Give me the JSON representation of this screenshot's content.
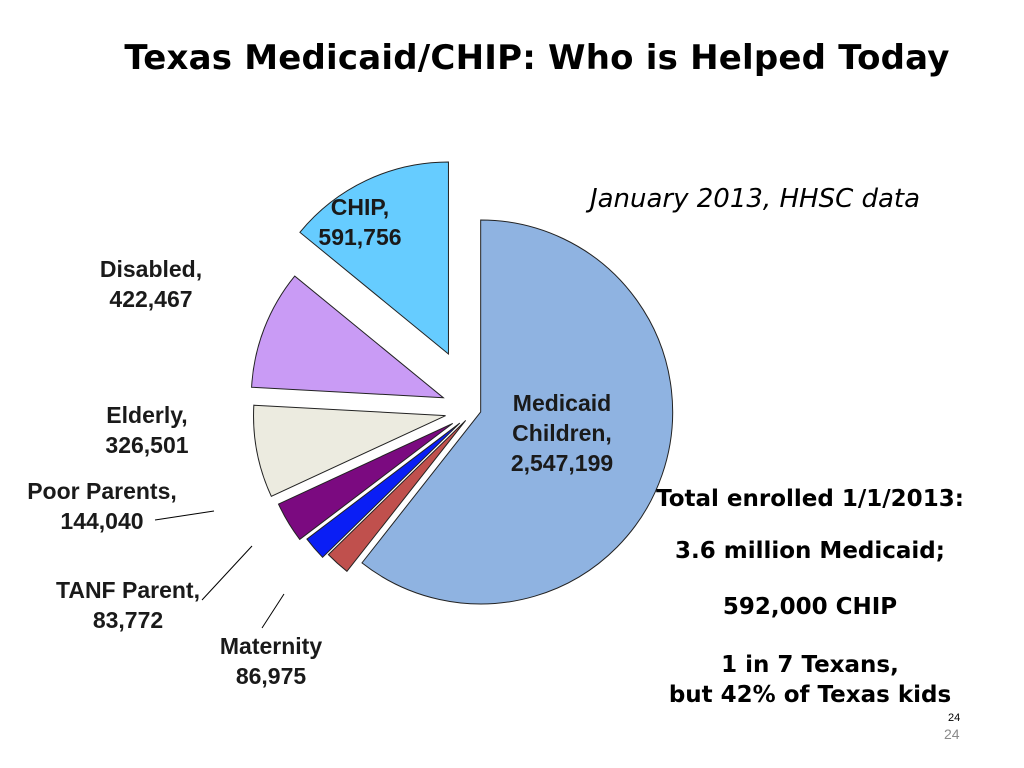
{
  "title": "Texas Medicaid/CHIP: Who is Helped Today",
  "source_note": "January  2013, HHSC data",
  "notes": {
    "line1": "Total enrolled 1/1/2013:",
    "line2": "3.6 million Medicaid;",
    "line3": "592,000  CHIP",
    "line4": "1 in 7 Texans,",
    "line5": "but 42% of Texas kids"
  },
  "page_number_small": "24",
  "page_number_large": "24",
  "chart_data": {
    "type": "pie",
    "title": "Texas Medicaid/CHIP: Who is Helped Today",
    "exploded": true,
    "slices": [
      {
        "key": "medicaid_children",
        "label_lines": [
          "Medicaid",
          "Children,",
          "2,547,199"
        ],
        "value": 2547199,
        "color": "#8fb3e1"
      },
      {
        "key": "maternity",
        "label_lines": [
          "Maternity",
          "86,975"
        ],
        "value": 86975,
        "color": "#c0504d"
      },
      {
        "key": "tanf_parent",
        "label_lines": [
          "TANF Parent,",
          "83,772"
        ],
        "value": 83772,
        "color": "#0a1ef5"
      },
      {
        "key": "poor_parents",
        "label_lines": [
          "Poor Parents,",
          "144,040"
        ],
        "value": 144040,
        "color": "#7b0a80"
      },
      {
        "key": "elderly",
        "label_lines": [
          "Elderly,",
          "326,501"
        ],
        "value": 326501,
        "color": "#ecebe0"
      },
      {
        "key": "disabled",
        "label_lines": [
          "Disabled,",
          "422,467"
        ],
        "value": 422467,
        "color": "#c99bf5"
      },
      {
        "key": "chip",
        "label_lines": [
          "CHIP,",
          "591,756"
        ],
        "value": 591756,
        "color": "#66ccff"
      }
    ]
  }
}
